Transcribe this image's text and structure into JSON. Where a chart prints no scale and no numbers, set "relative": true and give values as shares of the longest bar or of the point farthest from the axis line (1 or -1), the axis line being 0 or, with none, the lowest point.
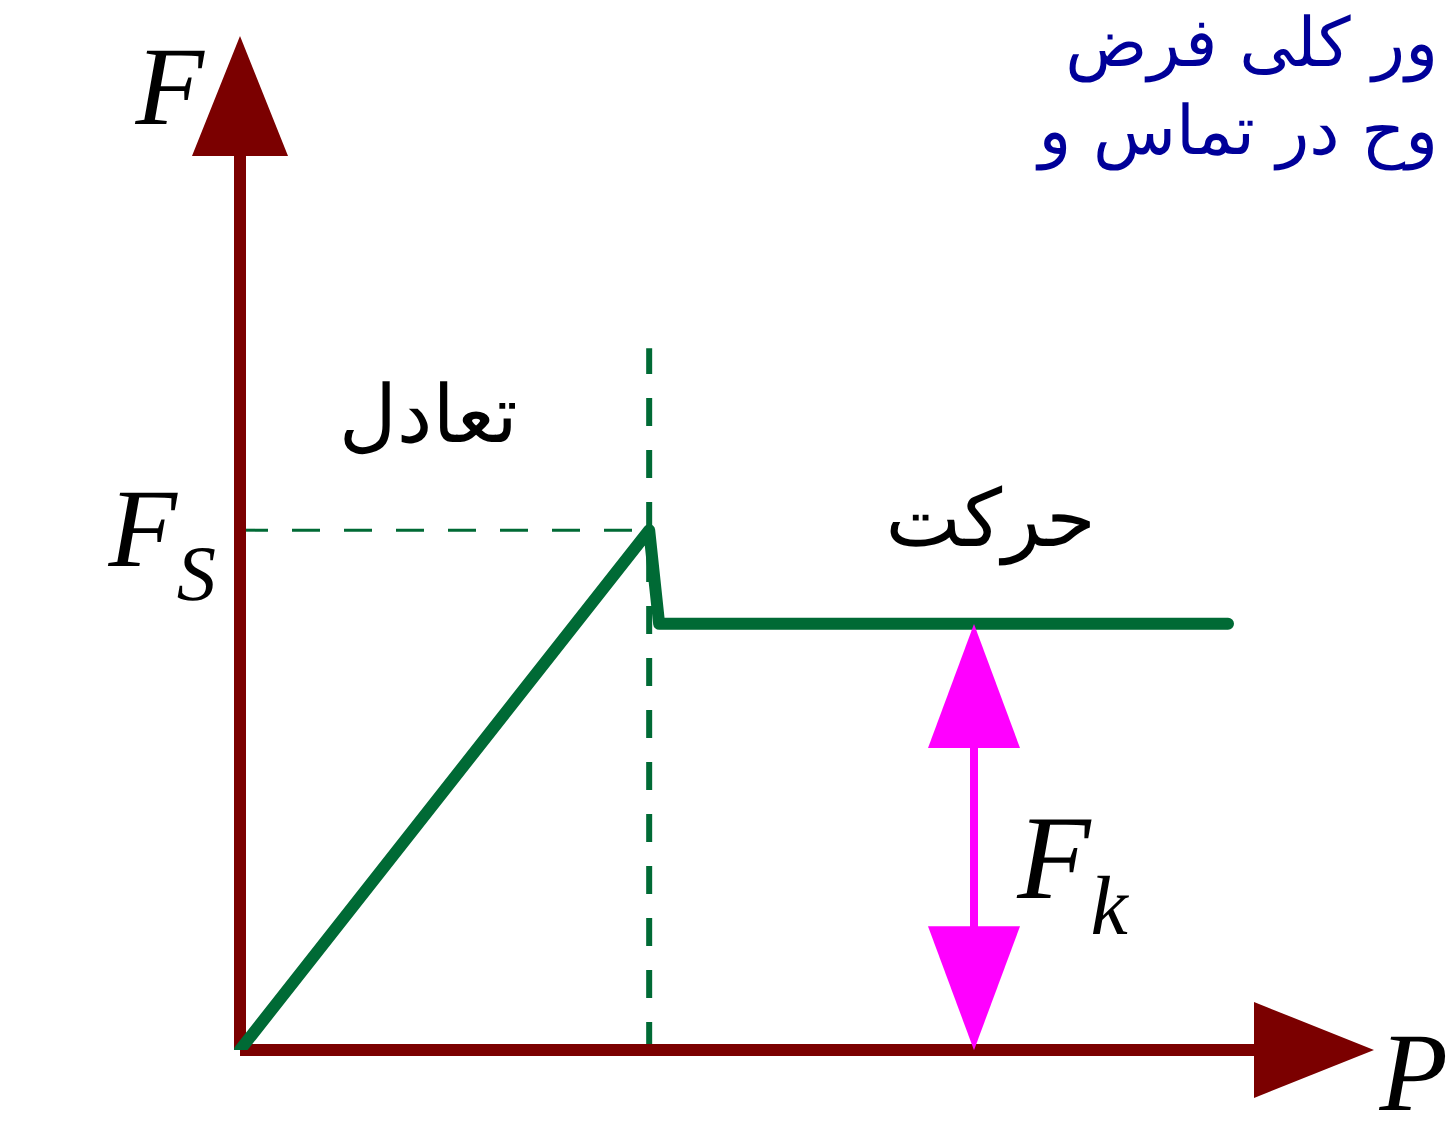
{
  "chart_data": {
    "type": "line",
    "relative": true,
    "xlabel": "P",
    "ylabel": "F",
    "categories": [
      null,
      null,
      null,
      null,
      null,
      null,
      null,
      null,
      null,
      null,
      null,
      null,
      null,
      null,
      null,
      null,
      null,
      null,
      null,
      null,
      null,
      null,
      null,
      null,
      null,
      null,
      null,
      null,
      null,
      null,
      null,
      null,
      null,
      null,
      null,
      null,
      null,
      null,
      null,
      null,
      null,
      null,
      null,
      null,
      null,
      null,
      null,
      null,
      null,
      null,
      null,
      null,
      null,
      null,
      null,
      null,
      null,
      null,
      null,
      null,
      null,
      null,
      null,
      null,
      null,
      null,
      null,
      null,
      null,
      null,
      null,
      null,
      null,
      null,
      null,
      null,
      null,
      null,
      null,
      null,
      null,
      null,
      null,
      null,
      null,
      null,
      null,
      null,
      null,
      null,
      null,
      null,
      null,
      null,
      null,
      null,
      null,
      null,
      null,
      null
    ],
    "series": [
      {
        "color": "#006a35",
        "values": [
          0,
          null,
          null,
          null,
          null,
          null,
          null,
          null,
          null,
          null,
          null,
          null,
          null,
          null,
          null,
          null,
          null,
          null,
          null,
          null,
          null,
          null,
          null,
          null,
          null,
          null,
          null,
          null,
          null,
          null,
          null,
          null,
          null,
          null,
          null,
          null,
          null,
          null,
          null,
          null,
          null,
          1,
          0.82,
          null,
          null,
          null,
          null,
          null,
          null,
          null,
          null,
          null,
          null,
          null,
          null,
          null,
          null,
          null,
          null,
          null,
          null,
          null,
          null,
          null,
          null,
          null,
          null,
          null,
          null,
          null,
          null,
          null,
          null,
          null,
          null,
          null,
          null,
          null,
          null,
          null,
          null,
          null,
          null,
          null,
          null,
          null,
          null,
          null,
          null,
          null,
          null,
          null,
          null,
          null,
          null,
          null,
          null,
          null,
          null,
          0.82
        ]
      }
    ],
    "ref_lines": [
      {
        "axis": "y",
        "value": 1,
        "label": "F$_{S}$",
        "color": "#006a35",
        "line_style": "dashed"
      }
    ],
    "annotations": [
      "ور کلی فرض",
      "وح در تماس و",
      "تعادل",
      "حرکت",
      "F$_{k}$"
    ],
    "legend": false,
    "marker": "none",
    "line_style": "solid"
  }
}
